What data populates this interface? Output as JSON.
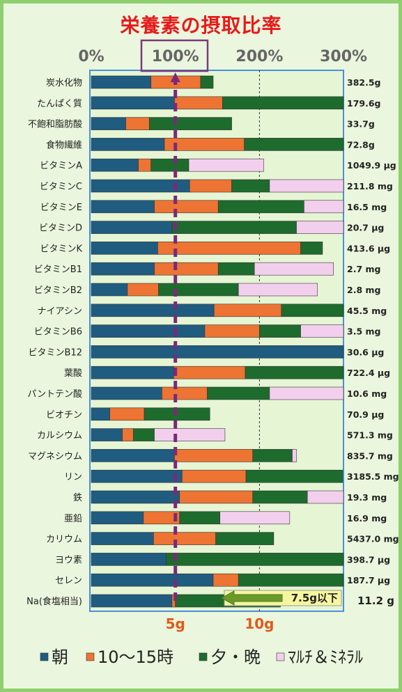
{
  "chart_data": {
    "type": "bar",
    "stacked": true,
    "orientation": "horizontal",
    "title": "栄養素の摂取比率",
    "x_ticks": [
      "0%",
      "100%",
      "200%",
      "300%"
    ],
    "xlim": [
      0,
      300
    ],
    "secondary_markers": [
      "5g",
      "10g"
    ],
    "categories": [
      "炭水化物",
      "たんぱく質",
      "不飽和脂肪酸",
      "食物繊維",
      "ビタミンA",
      "ビタミンC",
      "ビタミンE",
      "ビタミンD",
      "ビタミンK",
      "ビタミンB1",
      "ビタミンB2",
      "ナイアシン",
      "ビタミンB6",
      "ビタミンB12",
      "葉酸",
      "パントテン酸",
      "ビオチン",
      "カルシウム",
      "マグネシウム",
      "リン",
      "鉄",
      "亜鉛",
      "カリウム",
      "ヨウ素",
      "セレン",
      "Na(食塩相当)"
    ],
    "amounts": [
      "382.5g",
      "179.6g",
      "33.7g",
      "72.8g",
      "1049.9 μg",
      "211.8 mg",
      "16.5 mg",
      "20.7 μg",
      "413.6 μg",
      "2.7 mg",
      "2.8 mg",
      "45.5 mg",
      "3.5 mg",
      "30.6 μg",
      "722.4 μg",
      "10.6 mg",
      "70.9 μg",
      "571.3 mg",
      "835.7 mg",
      "3185.5 mg",
      "19.3 mg",
      "16.9 mg",
      "5437.0 mg",
      "398.7 μg",
      "187.7 μg",
      "11.2 g"
    ],
    "series": [
      {
        "name": "朝",
        "color": "#1f5c80",
        "values": [
          71,
          99,
          41,
          87,
          56,
          117,
          75,
          96,
          79,
          75,
          43,
          146,
          135,
          300,
          98,
          84,
          22,
          37,
          99,
          108,
          105,
          62,
          74,
          89,
          145,
          96
        ]
      },
      {
        "name": "10～15時",
        "color": "#ed7433",
        "values": [
          59,
          57,
          28,
          95,
          15,
          50,
          76,
          0,
          170,
          76,
          37,
          80,
          65,
          0,
          85,
          54,
          41,
          13,
          93,
          76,
          87,
          43,
          74,
          0,
          30,
          4
        ]
      },
      {
        "name": "夕・晩",
        "color": "#1e6b2e",
        "values": [
          15,
          144,
          98,
          120,
          45,
          45,
          102,
          148,
          26,
          43,
          95,
          76,
          49,
          0,
          117,
          74,
          78,
          25,
          47,
          115,
          65,
          48,
          69,
          211,
          125,
          125
        ]
      },
      {
        "name": "ﾏﾙﾁ＆ﾐﾈﾗﾙ",
        "color": "#f3cfee",
        "values": [
          0,
          0,
          0,
          0,
          89,
          88,
          47,
          57,
          0,
          94,
          94,
          0,
          51,
          0,
          0,
          88,
          0,
          84,
          5,
          0,
          43,
          83,
          0,
          0,
          0,
          0
        ]
      }
    ],
    "reference_line": "100%",
    "annotation": "7.5g以下",
    "legend_position": "bottom"
  }
}
